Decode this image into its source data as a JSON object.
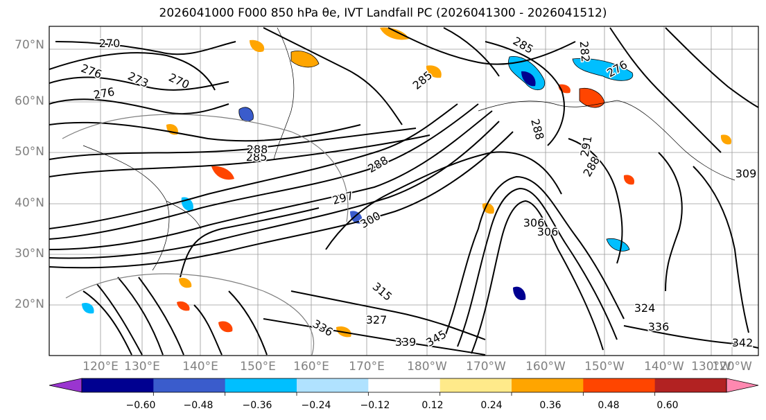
{
  "title": "2026041000 F000 850 hPa θe, IVT Landfall PC (2026041300 - 2026041512)",
  "lat_labels": [
    "70°N",
    "60°N",
    "50°N",
    "40°N",
    "30°N",
    "20°N"
  ],
  "lon_labels": [
    "120°E",
    "130°E",
    "140°E",
    "150°E",
    "160°E",
    "170°E",
    "180°W",
    "170°W",
    "160°W",
    "150°W",
    "140°W",
    "130°W",
    "120°W"
  ],
  "colorbar": {
    "colors": [
      "#9a35d0",
      "#000090",
      "#3a5ccc",
      "#00bfff",
      "#b0e2ff",
      "#ffffff",
      "#ffea8a",
      "#ffa500",
      "#ff4500",
      "#b22222",
      "#ff88b0"
    ],
    "tick_labels": [
      "−0.60",
      "−0.48",
      "−0.36",
      "−0.24",
      "−0.12",
      "0.12",
      "0.24",
      "0.36",
      "0.48",
      "0.60"
    ]
  },
  "contour_labels": [
    {
      "text": "270"
    },
    {
      "text": "276"
    },
    {
      "text": "273"
    },
    {
      "text": "270"
    },
    {
      "text": "276"
    },
    {
      "text": "285"
    },
    {
      "text": "282"
    },
    {
      "text": "276"
    },
    {
      "text": "285"
    },
    {
      "text": "288"
    },
    {
      "text": "291"
    },
    {
      "text": "288"
    },
    {
      "text": "288"
    },
    {
      "text": "285"
    },
    {
      "text": "288"
    },
    {
      "text": "297"
    },
    {
      "text": "300"
    },
    {
      "text": "306"
    },
    {
      "text": "306"
    },
    {
      "text": "315"
    },
    {
      "text": "327"
    },
    {
      "text": "336"
    },
    {
      "text": "339"
    },
    {
      "text": "345"
    },
    {
      "text": "309"
    },
    {
      "text": "342"
    },
    {
      "text": "324"
    },
    {
      "text": "336"
    }
  ]
}
